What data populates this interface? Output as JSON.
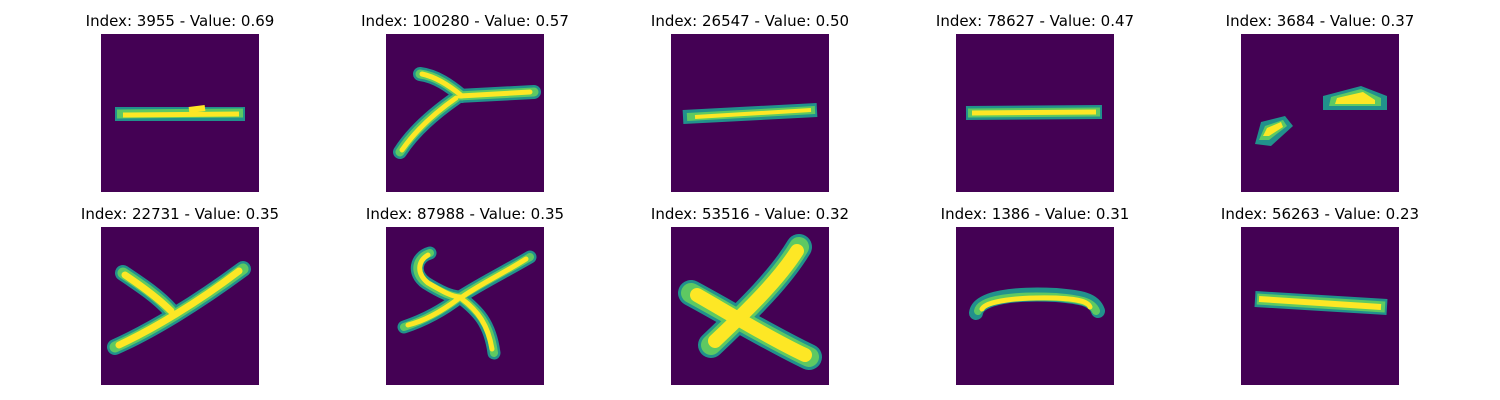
{
  "colors": {
    "background": "#440154",
    "stroke_edge": "#21918c",
    "stroke_mid": "#5ec962",
    "stroke_core": "#fde725"
  },
  "panels": [
    {
      "title": "Index: 3955 - Value: 0.69",
      "index": 3955,
      "value": 0.69,
      "glyph": "horizontal-stroke"
    },
    {
      "title": "Index: 100280 - Value: 0.57",
      "index": 100280,
      "value": 0.57,
      "glyph": "y-shape"
    },
    {
      "title": "Index: 26547 - Value: 0.50",
      "index": 26547,
      "value": 0.5,
      "glyph": "horizontal-stroke"
    },
    {
      "title": "Index: 78627 - Value: 0.47",
      "index": 78627,
      "value": 0.47,
      "glyph": "horizontal-stroke"
    },
    {
      "title": "Index: 3684 - Value: 0.37",
      "index": 3684,
      "value": 0.37,
      "glyph": "two-fragments"
    },
    {
      "title": "Index: 22731 - Value: 0.35",
      "index": 22731,
      "value": 0.35,
      "glyph": "y-shape"
    },
    {
      "title": "Index: 87988 - Value: 0.35",
      "index": 87988,
      "value": 0.35,
      "glyph": "x-shape"
    },
    {
      "title": "Index: 53516 - Value: 0.32",
      "index": 53516,
      "value": 0.32,
      "glyph": "x-shape"
    },
    {
      "title": "Index: 1386 - Value: 0.31",
      "index": 1386,
      "value": 0.31,
      "glyph": "horizontal-stroke"
    },
    {
      "title": "Index: 56263 - Value: 0.23",
      "index": 56263,
      "value": 0.23,
      "glyph": "horizontal-stroke"
    }
  ]
}
